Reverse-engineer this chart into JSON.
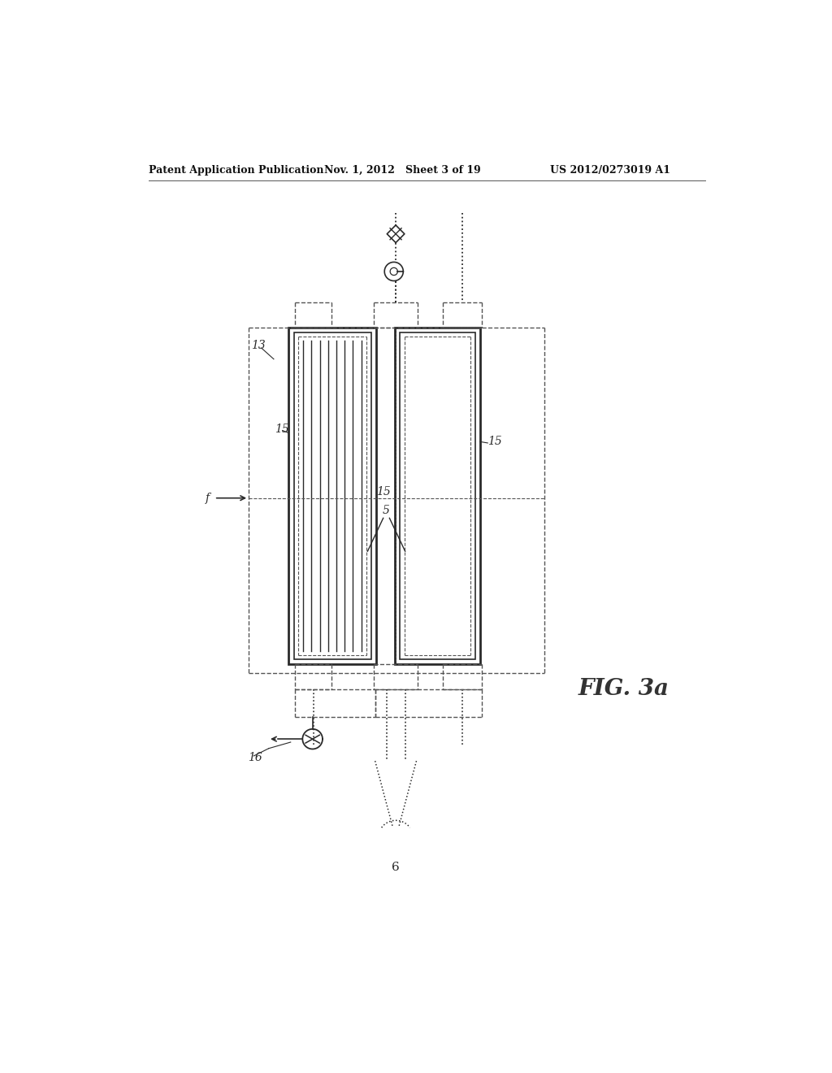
{
  "bg_color": "#ffffff",
  "lc": "#2a2a2a",
  "dc": "#555555",
  "header_left": "Patent Application Publication",
  "header_mid": "Nov. 1, 2012   Sheet 3 of 19",
  "header_right": "US 2012/0273019 A1",
  "fig_label": "FIG. 3a",
  "label_13": "13",
  "label_15_left": "15",
  "label_15_right": "15",
  "label_15_center": "15",
  "label_16": "16",
  "label_f": "f",
  "label_5": "5",
  "label_6": "6"
}
